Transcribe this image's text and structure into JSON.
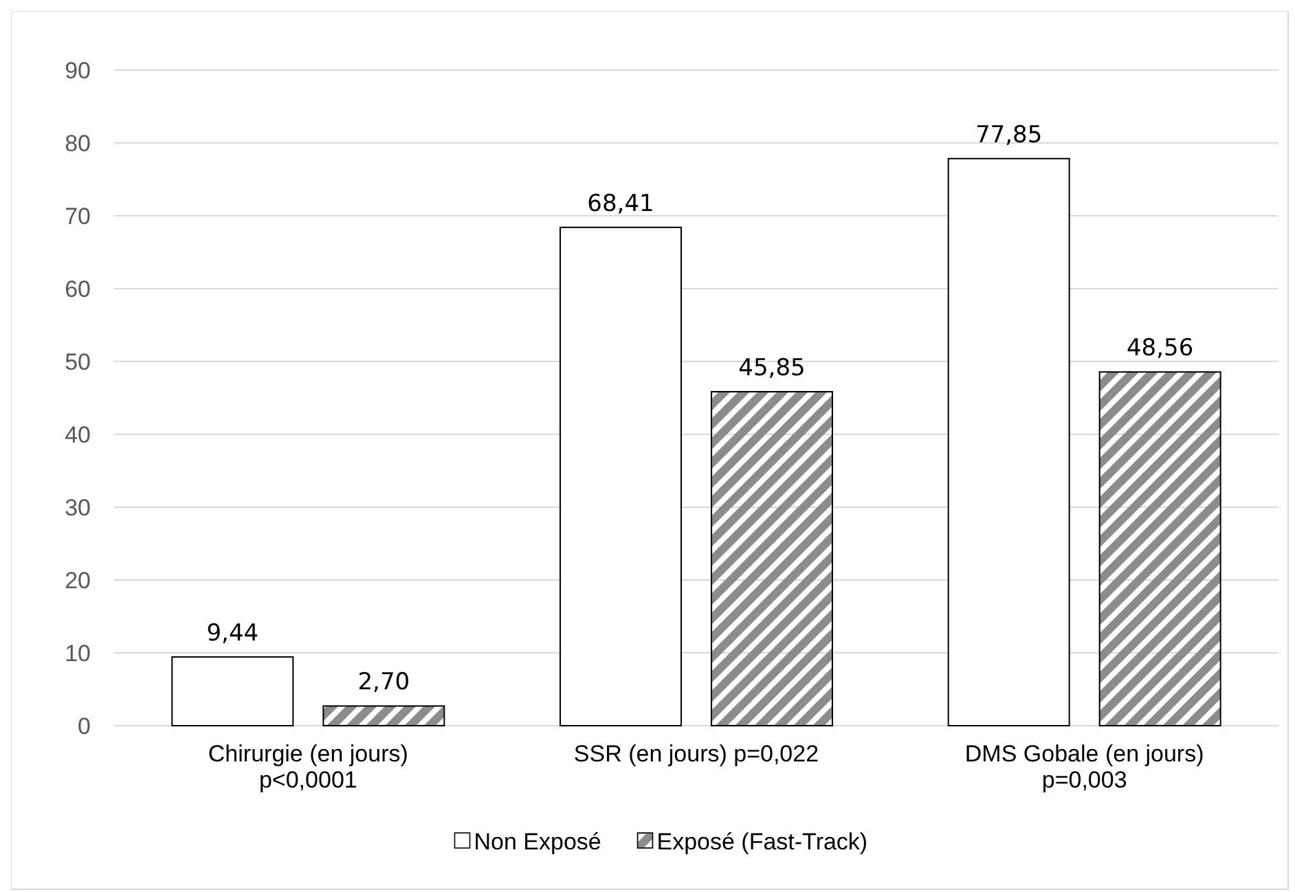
{
  "chart_data": {
    "type": "bar",
    "categories": [
      "Chirurgie (en jours)\np<0,0001",
      "SSR (en jours) p=0,022",
      "DMS Gobale (en jours)\np=0,003"
    ],
    "series": [
      {
        "name": "Non Exposé",
        "color": "#ffffff",
        "values": [
          9.44,
          68.41,
          77.85
        ],
        "value_labels": [
          "9,44",
          "68,41",
          "77,85"
        ]
      },
      {
        "name": "Exposé (Fast-Track)",
        "color": "#8c8c8c",
        "values": [
          2.7,
          45.85,
          48.56
        ],
        "value_labels": [
          "2,70",
          "45,85",
          "48,56"
        ]
      }
    ],
    "ylim": [
      0,
      90
    ],
    "yticks": [
      0,
      10,
      20,
      30,
      40,
      50,
      60,
      70,
      80,
      90
    ],
    "grid": "y",
    "legend": "bottom"
  }
}
